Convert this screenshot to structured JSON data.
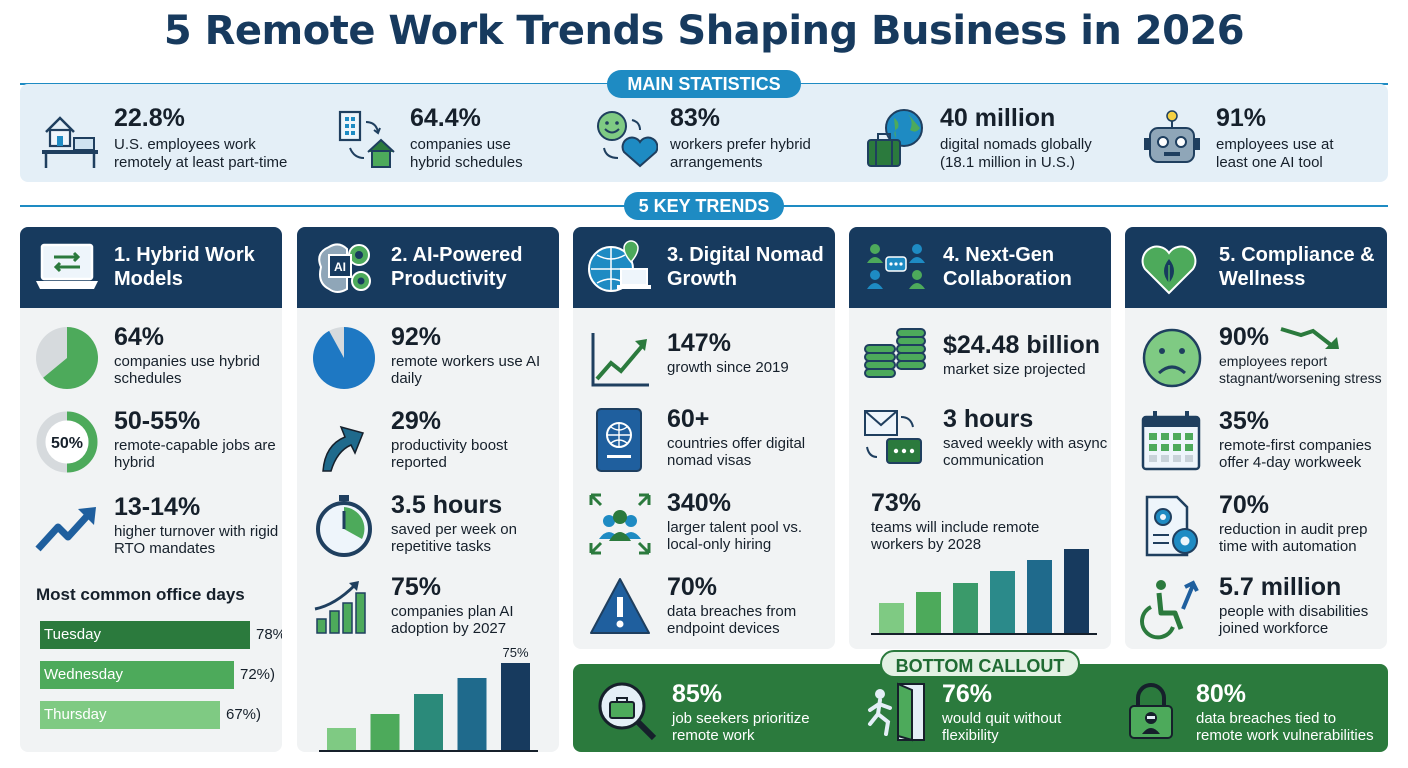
{
  "title": "5 Remote Work Trends Shaping Business in 2026",
  "main_stats_label": "MAIN STATISTICS",
  "key_trends_label": "5 KEY TRENDS",
  "main_stats": [
    {
      "icon": "home-office-icon",
      "value": "22.8%",
      "label": "U.S. employees work remotely at least part-time"
    },
    {
      "icon": "office-to-home-icon",
      "value": "64.4%",
      "label": "companies use hybrid schedules"
    },
    {
      "icon": "smile-heart-icon",
      "value": "83%",
      "label": "workers prefer hybrid arrangements"
    },
    {
      "icon": "globe-suitcase-icon",
      "value": "40 million",
      "label": "digital nomads globally (18.1 million in U.S.)"
    },
    {
      "icon": "robot-icon",
      "value": "91%",
      "label": "employees use at least one AI tool"
    }
  ],
  "trends": [
    {
      "title": "1. Hybrid Work Models",
      "items": [
        {
          "value": "64%",
          "label": "companies use hybrid schedules",
          "pie_fraction": 0.64
        },
        {
          "value": "50-55%",
          "label": "remote-capable jobs are hybrid",
          "ring_text": "50%",
          "ring_fraction": 0.5
        },
        {
          "value": "13-14%",
          "label": "higher turnover with rigid RTO mandates"
        }
      ],
      "office_days_title": "Most common office days",
      "office_days": [
        {
          "day": "Tuesday",
          "value": 78,
          "display": "78%)",
          "color": "#2b7a3d"
        },
        {
          "day": "Wednesday",
          "value": 72,
          "display": "72%)",
          "color": "#4daa5b"
        },
        {
          "day": "Thursday",
          "value": 67,
          "display": "67%)",
          "color": "#7fca83"
        }
      ]
    },
    {
      "title": "2. AI-Powered Productivity",
      "items": [
        {
          "value": "92%",
          "label": "remote workers use AI daily",
          "pie_fraction": 0.92
        },
        {
          "value": "29%",
          "label": "productivity boost reported"
        },
        {
          "value": "3.5 hours",
          "label": "saved per week on repetitive tasks"
        },
        {
          "value": "75%",
          "label": "companies plan AI adoption by 2027"
        }
      ],
      "bar_label": "75%",
      "bar_levels": [
        0.2,
        0.32,
        0.5,
        0.64,
        0.78
      ]
    },
    {
      "title": "3. Digital Nomad Growth",
      "items": [
        {
          "value": "147%",
          "label": "growth since 2019"
        },
        {
          "value": "60+",
          "label": "countries offer digital nomad visas"
        },
        {
          "value": "340%",
          "label": "larger talent pool vs. local-only hiring"
        },
        {
          "value": "70%",
          "label": "data breaches from endpoint devices"
        }
      ]
    },
    {
      "title": "4. Next-Gen Collaboration",
      "items": [
        {
          "value": "$24.48 billion",
          "label": "market size projected"
        },
        {
          "value": "3 hours",
          "label": "saved weekly with async communication"
        },
        {
          "value": "73%",
          "label": "teams will include remote workers by 2028"
        }
      ],
      "bar_levels": [
        0.36,
        0.49,
        0.6,
        0.74,
        0.87,
        1.0
      ]
    },
    {
      "title": "5. Compliance & Wellness",
      "items": [
        {
          "value": "90%",
          "label": "employees report stagnant/worsening stress"
        },
        {
          "value": "35%",
          "label": "remote-first companies offer 4-day workweek"
        },
        {
          "value": "70%",
          "label": "reduction in audit prep time with automation"
        },
        {
          "value": "5.7 million",
          "label": "people with disabilities joined workforce"
        }
      ]
    }
  ],
  "bottom_callout": {
    "label": "BOTTOM CALLOUT",
    "items": [
      {
        "value": "85%",
        "label": "job seekers prioritize remote work"
      },
      {
        "value": "76%",
        "label": "would quit without flexibility"
      },
      {
        "value": "80%",
        "label": "data breaches tied to remote work vulnerabilities"
      }
    ]
  },
  "colors": {
    "navy": "#173a5e",
    "blue": "#1e8bc3",
    "green": "#2b7a3d",
    "light_green": "#4daa5b",
    "panel": "#f1f3f4"
  }
}
